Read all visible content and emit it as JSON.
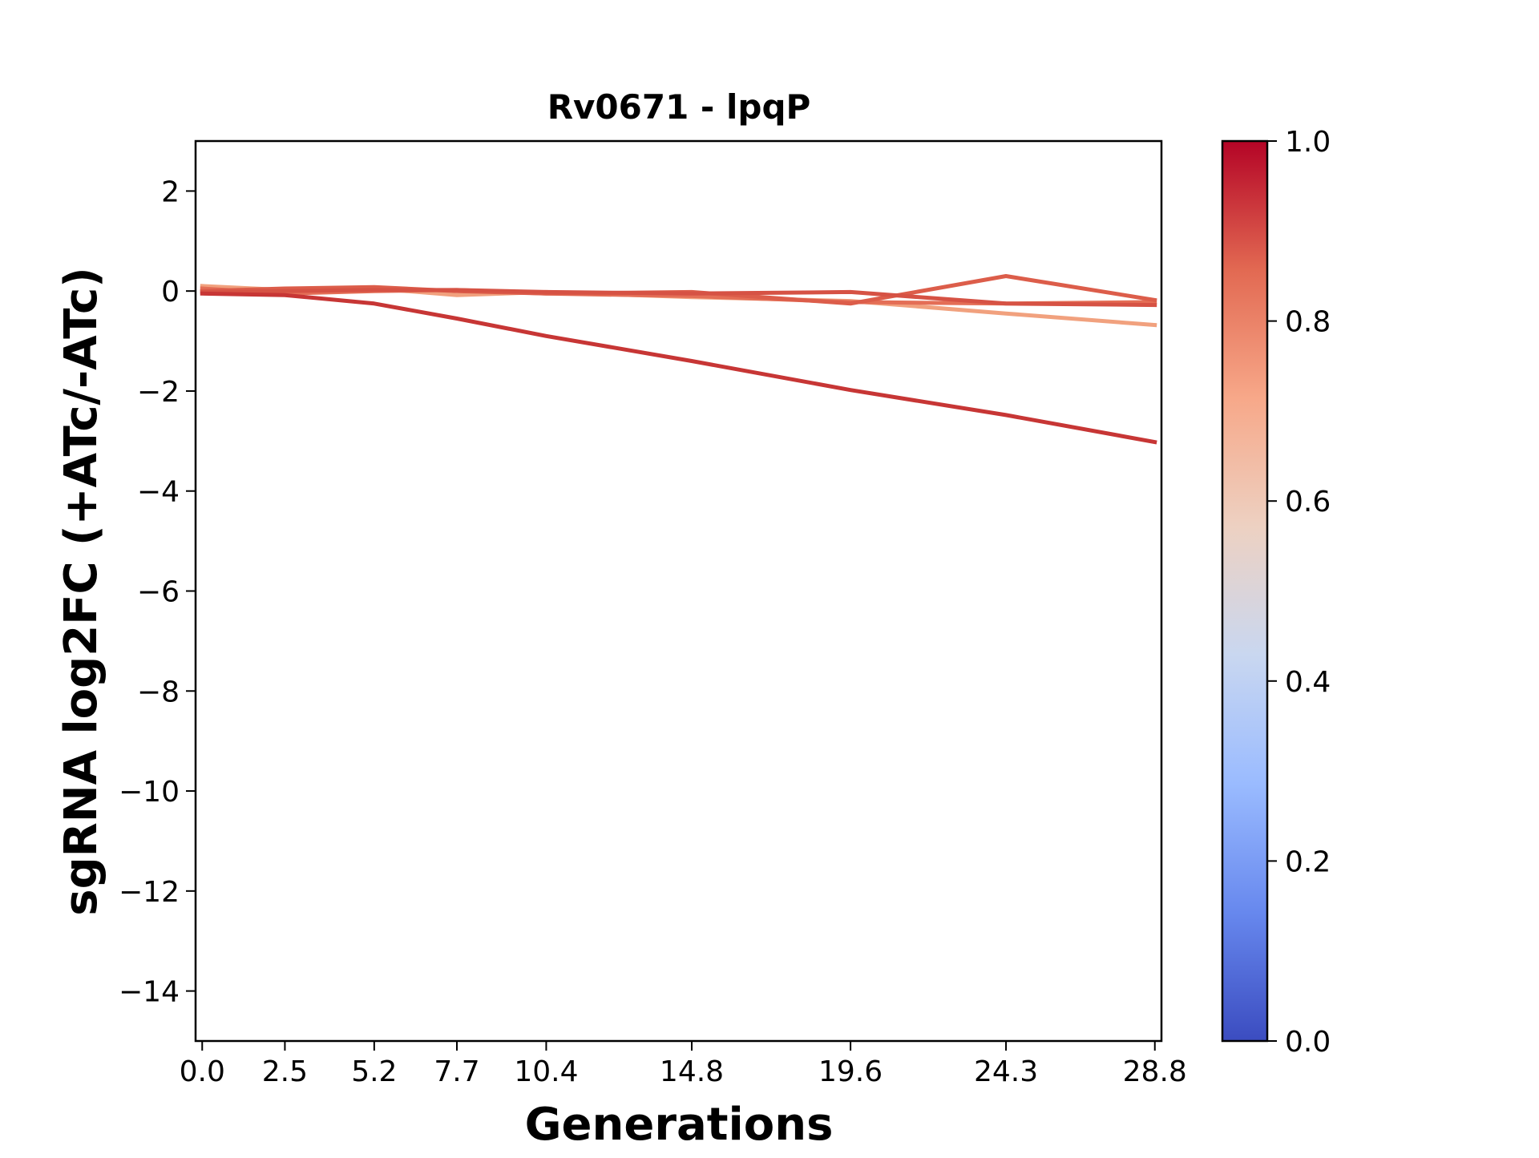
{
  "chart_data": {
    "type": "line",
    "title": "Rv0671 - lpqP",
    "xlabel": "Generations",
    "ylabel": "sgRNA log2FC (+ATc/-ATc)",
    "x_ticks": [
      "0.0",
      "2.5",
      "5.2",
      "7.7",
      "10.4",
      "14.8",
      "19.6",
      "24.3",
      "28.8"
    ],
    "x": [
      0.0,
      2.5,
      5.2,
      7.7,
      10.4,
      14.8,
      19.6,
      24.3,
      28.8
    ],
    "xlim": [
      -0.2,
      29.0
    ],
    "ylim": [
      -15,
      3
    ],
    "y_ticks": [
      2,
      0,
      -2,
      -4,
      -6,
      -8,
      -10,
      -12,
      -14
    ],
    "y_tick_labels": [
      "2",
      "0",
      "−2",
      "−4",
      "−6",
      "−8",
      "−10",
      "−12",
      "−14"
    ],
    "grid": false,
    "series": [
      {
        "color_value": 0.72,
        "color": "#f1a17e",
        "values": [
          0.1,
          0.02,
          0.05,
          -0.08,
          -0.02,
          -0.12,
          -0.2,
          -0.45,
          -0.68
        ]
      },
      {
        "color_value": 0.82,
        "color": "#e46e56",
        "values": [
          0.05,
          -0.05,
          0.0,
          0.02,
          -0.05,
          -0.1,
          -0.22,
          -0.25,
          -0.22
        ]
      },
      {
        "color_value": 0.86,
        "color": "#dc5d4a",
        "values": [
          0.0,
          0.05,
          0.08,
          0.0,
          -0.05,
          -0.02,
          -0.25,
          0.3,
          -0.18
        ]
      },
      {
        "color_value": 0.88,
        "color": "#d65244",
        "values": [
          -0.02,
          0.0,
          0.02,
          0.02,
          -0.02,
          -0.05,
          -0.02,
          -0.25,
          -0.28
        ]
      },
      {
        "color_value": 0.93,
        "color": "#c73635",
        "values": [
          -0.05,
          -0.08,
          -0.25,
          -0.55,
          -0.9,
          -1.4,
          -1.98,
          -2.48,
          -3.02
        ]
      }
    ],
    "colorbar": {
      "colormap": "coolwarm",
      "range": [
        0.0,
        1.0
      ],
      "ticks": [
        "0.0",
        "0.2",
        "0.4",
        "0.6",
        "0.8",
        "1.0"
      ],
      "stops": [
        "#3b4cc0",
        "#6788ee",
        "#9abbff",
        "#c9d7f0",
        "#edd1c2",
        "#f7a889",
        "#e26952",
        "#b40426"
      ]
    }
  }
}
